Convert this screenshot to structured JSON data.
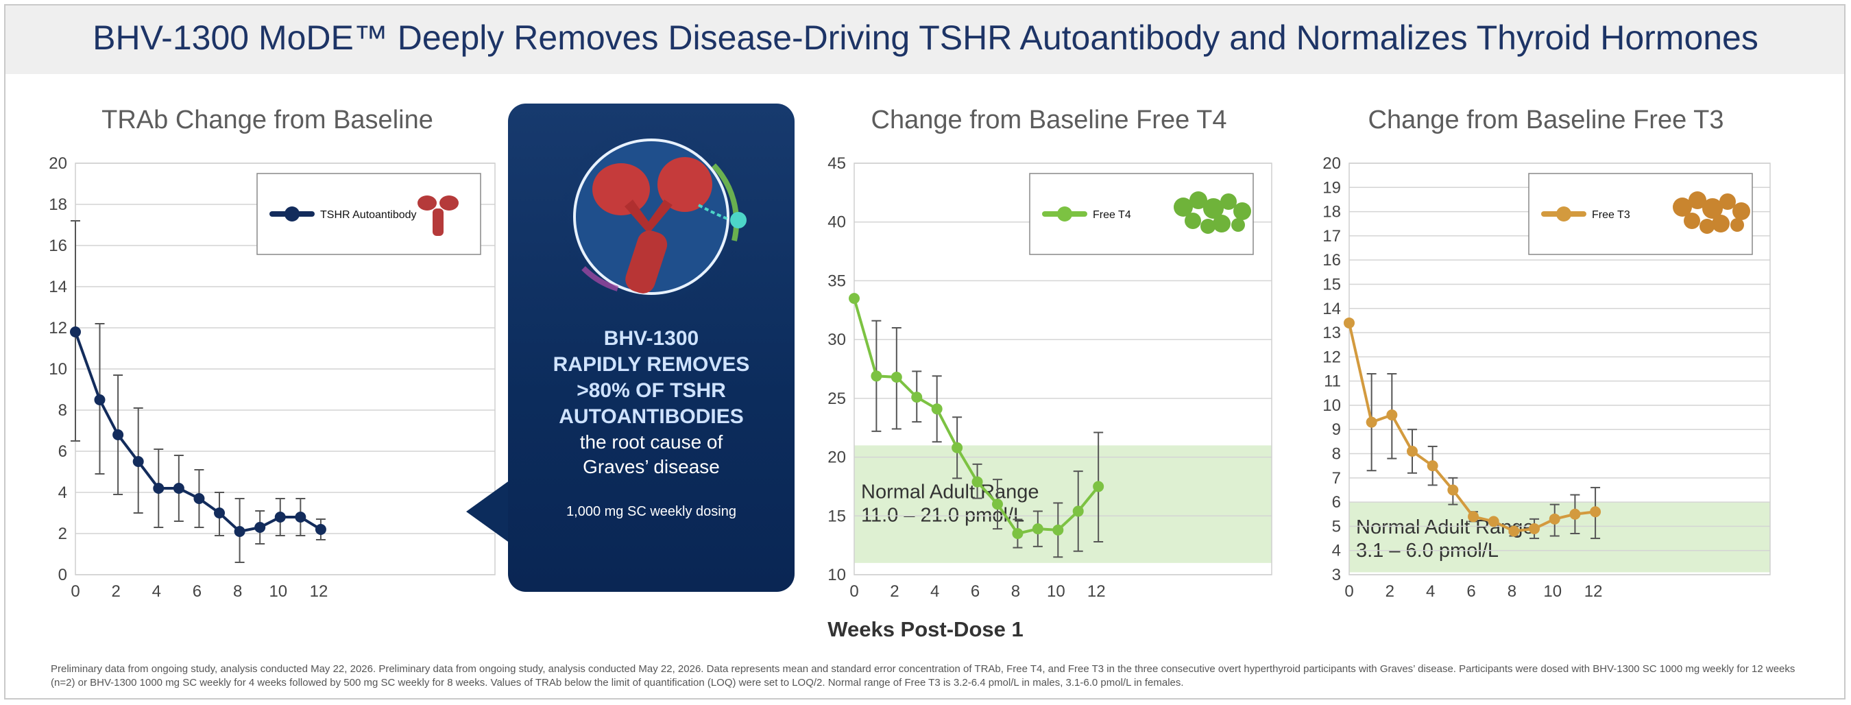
{
  "title": "BHV-1300 MoDE™ Deeply Removes Disease-Driving TSHR Autoantibody and Normalizes Thyroid Hormones",
  "callout": {
    "headline": "BHV-1300 RAPIDLY REMOVES >80% OF TSHR AUTOANTIBODIES",
    "headline_lines": [
      "BHV-1300",
      "RAPIDLY REMOVES",
      ">80% OF TSHR",
      "AUTOANTIBODIES"
    ],
    "sub_lines": [
      "the root cause of",
      "Graves’ disease"
    ],
    "dosing": "1,000 mg SC weekly dosing"
  },
  "x_axis_label": "Weeks Post-Dose 1",
  "footnote": "Preliminary data from ongoing study, analysis conducted May 22, 2026. Preliminary data from ongoing study, analysis conducted May 22, 2026. Data represents mean and standard error concentration of TRAb, Free T4, and Free T3 in the three consecutive overt hyperthyroid participants with Graves’ disease. Participants were dosed with BHV-1300 SC 1000 mg weekly for 12 weeks (n=2) or BHV-1300 1000 mg SC weekly for 4 weeks followed by 500 mg SC weekly for 8 weeks. Values of TRAb below the limit of quantification (LOQ) were set to LOQ/2. Normal range of Free T3 is 3.2-6.4 pmol/L in males, 3.1-6.0 pmol/L in females.",
  "chart_data": [
    {
      "type": "line",
      "title": "TRAb Change from Baseline",
      "xlabel": "Weeks Post-Dose 1",
      "ylabel": "",
      "xlim": [
        0,
        12
      ],
      "ylim": [
        0,
        20
      ],
      "xticks": [
        0,
        2,
        4,
        6,
        8,
        10,
        12
      ],
      "yticks": [
        0,
        2,
        4,
        6,
        8,
        10,
        12,
        14,
        16,
        18,
        20
      ],
      "grid": true,
      "legend_position": "top-right",
      "color": "#132c5c",
      "series": [
        {
          "name": "TSHR Autoantibody",
          "x": [
            0,
            1.2,
            2.1,
            3.1,
            4.1,
            5.1,
            6.1,
            7.1,
            8.1,
            9.1,
            10.1,
            11.1,
            12.1
          ],
          "y": [
            11.8,
            8.5,
            6.8,
            5.5,
            4.2,
            4.2,
            3.7,
            3.0,
            2.1,
            2.3,
            2.8,
            2.8,
            2.2
          ],
          "err_low": [
            6.5,
            4.9,
            3.9,
            3.0,
            2.3,
            2.6,
            2.3,
            1.9,
            0.6,
            1.5,
            1.9,
            1.9,
            1.7
          ],
          "err_high": [
            17.2,
            12.2,
            9.7,
            8.1,
            6.1,
            5.8,
            5.1,
            4.0,
            3.7,
            3.1,
            3.7,
            3.7,
            2.7
          ]
        }
      ]
    },
    {
      "type": "line",
      "title": "Change from Baseline Free T4",
      "xlabel": "Weeks Post-Dose 1",
      "ylabel": "",
      "xlim": [
        0,
        12
      ],
      "ylim": [
        10,
        45
      ],
      "xticks": [
        0,
        2,
        4,
        6,
        8,
        10,
        12
      ],
      "yticks": [
        10,
        15,
        20,
        25,
        30,
        35,
        40,
        45
      ],
      "grid": true,
      "legend_position": "top-right",
      "color": "#7cc242",
      "normal_range": {
        "low": 11.0,
        "high": 21.0,
        "label": "Normal Adult Range",
        "range_text": "11.0 – 21.0 pmol/L"
      },
      "series": [
        {
          "name": "Free T4",
          "x": [
            0,
            1.1,
            2.1,
            3.1,
            4.1,
            5.1,
            6.1,
            7.1,
            8.1,
            9.1,
            10.1,
            11.1,
            12.1
          ],
          "y": [
            33.5,
            26.9,
            26.8,
            25.1,
            24.1,
            20.8,
            17.9,
            16.0,
            13.5,
            13.9,
            13.8,
            15.4,
            17.5
          ],
          "err_low": [
            33.5,
            22.2,
            22.4,
            23.0,
            21.3,
            18.2,
            16.5,
            13.9,
            12.3,
            12.4,
            11.5,
            12.0,
            12.8
          ],
          "err_high": [
            33.5,
            31.6,
            31.0,
            27.3,
            26.9,
            23.4,
            19.4,
            18.1,
            14.7,
            15.4,
            16.1,
            18.8,
            22.1
          ]
        }
      ]
    },
    {
      "type": "line",
      "title": "Change from Baseline Free T3",
      "xlabel": "Weeks Post-Dose 1",
      "ylabel": "",
      "xlim": [
        0,
        12
      ],
      "ylim": [
        3,
        20
      ],
      "xticks": [
        0,
        2,
        4,
        6,
        8,
        10,
        12
      ],
      "yticks": [
        3,
        4,
        5,
        6,
        7,
        8,
        9,
        10,
        11,
        12,
        13,
        14,
        15,
        16,
        17,
        18,
        19,
        20
      ],
      "grid": true,
      "legend_position": "top-right",
      "color": "#d39a3e",
      "normal_range": {
        "low": 3.1,
        "high": 6.0,
        "label": "Normal Adult Range",
        "range_text": "3.1 – 6.0 pmol/L"
      },
      "series": [
        {
          "name": "Free T3",
          "x": [
            0,
            1.1,
            2.1,
            3.1,
            4.1,
            5.1,
            6.1,
            7.1,
            8.1,
            9.1,
            10.1,
            11.1,
            12.1
          ],
          "y": [
            13.4,
            9.3,
            9.6,
            8.1,
            7.5,
            6.5,
            5.4,
            5.2,
            4.8,
            4.9,
            5.3,
            5.5,
            5.6
          ],
          "err_low": [
            13.4,
            7.3,
            7.8,
            7.2,
            6.7,
            5.9,
            5.2,
            5.2,
            4.6,
            4.5,
            4.6,
            4.7,
            4.5
          ],
          "err_high": [
            13.4,
            11.3,
            11.3,
            9.0,
            8.3,
            7.0,
            5.6,
            5.2,
            5.0,
            5.3,
            5.9,
            6.3,
            6.6
          ]
        }
      ]
    }
  ]
}
